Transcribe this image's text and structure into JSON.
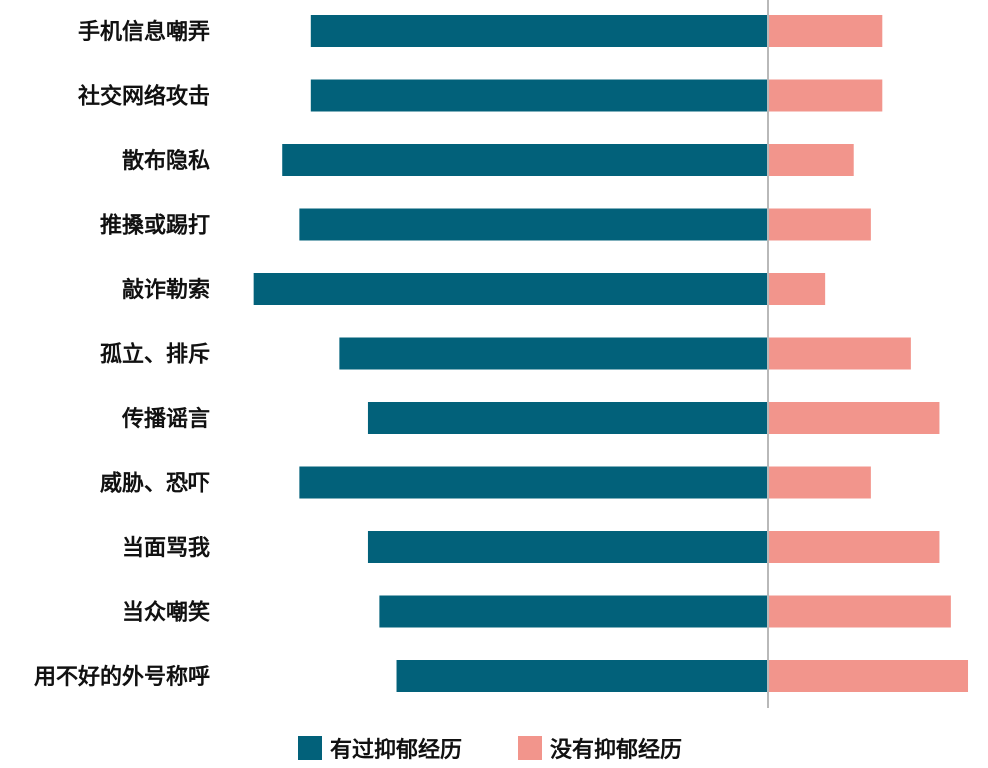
{
  "chart_data": {
    "type": "bar",
    "orientation": "horizontal-diverging",
    "categories": [
      "手机信息嘲弄",
      "社交网络攻击",
      "散布隐私",
      "推搡或踢打",
      "敲诈勒索",
      "孤立、排斥",
      "传播谣言",
      "威胁、恐吓",
      "当面骂我",
      "当众嘲笑",
      "用不好的外号称呼"
    ],
    "series": [
      {
        "name": "有过抑郁经历",
        "direction": "left",
        "color": "#02617A",
        "values": [
          40,
          40,
          42.5,
          41,
          45,
          37.5,
          35,
          41,
          35,
          34,
          32.5
        ]
      },
      {
        "name": "没有抑郁经历",
        "direction": "right",
        "color": "#F2958C",
        "values": [
          10,
          10,
          7.5,
          9,
          5,
          12.5,
          15,
          9,
          15,
          16,
          17.5
        ]
      }
    ],
    "title": "",
    "xlabel": "",
    "ylabel": "",
    "legend": "bottom-center",
    "grid": false
  }
}
